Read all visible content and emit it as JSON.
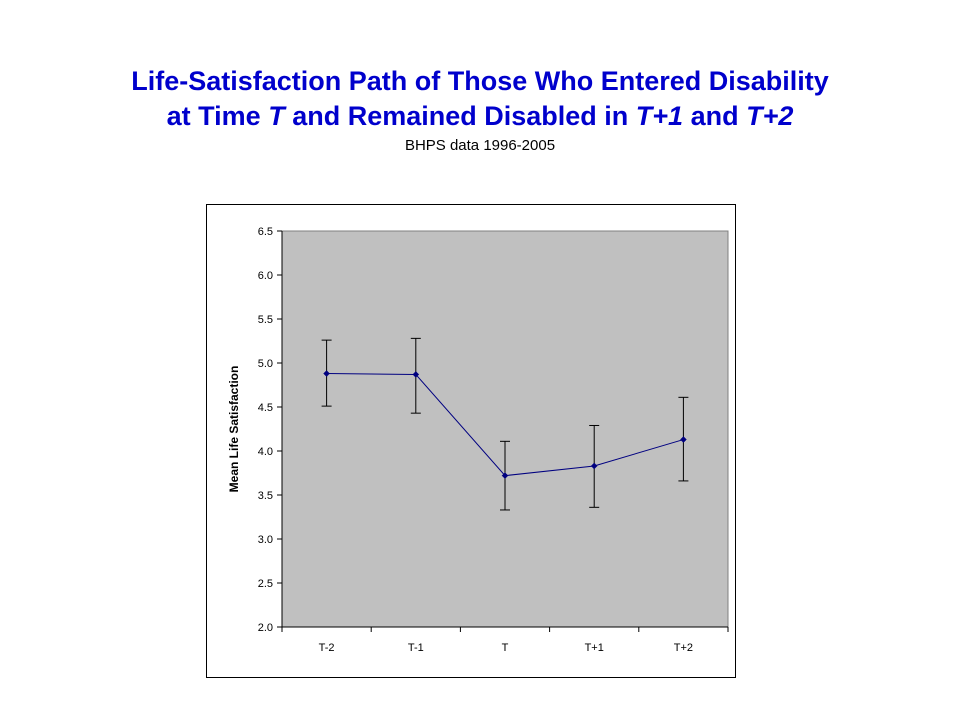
{
  "title": {
    "line1": "Life-Satisfaction Path of Those Who Entered Disability",
    "line2_part1": "at Time ",
    "line2_italic1": "T",
    "line2_part2": " and Remained Disabled in ",
    "line2_italic2": "T+1",
    "line2_part3": " and ",
    "line2_italic3": "T+2",
    "subtitle": "BHPS data 1996-2005"
  },
  "colors": {
    "title": "#0000cc",
    "plot_background": "#c0c0c0",
    "series": "#000080",
    "error_bar": "#000000"
  },
  "chart_data": {
    "type": "line",
    "categories": [
      "T-2",
      "T-1",
      "T",
      "T+1",
      "T+2"
    ],
    "series": [
      {
        "values": [
          4.88,
          4.87,
          3.72,
          3.83,
          4.13
        ],
        "error_low": [
          4.51,
          4.43,
          3.33,
          3.36,
          3.66
        ],
        "error_high": [
          5.26,
          5.28,
          4.11,
          4.29,
          4.61
        ]
      }
    ],
    "ylabel": "Mean Life Satisfaction",
    "xlabel": "",
    "ylim": [
      2.0,
      6.5
    ],
    "yticks": [
      "2.0",
      "2.5",
      "3.0",
      "3.5",
      "4.0",
      "4.5",
      "5.0",
      "5.5",
      "6.0",
      "6.5"
    ],
    "grid": false,
    "legend": "none"
  }
}
